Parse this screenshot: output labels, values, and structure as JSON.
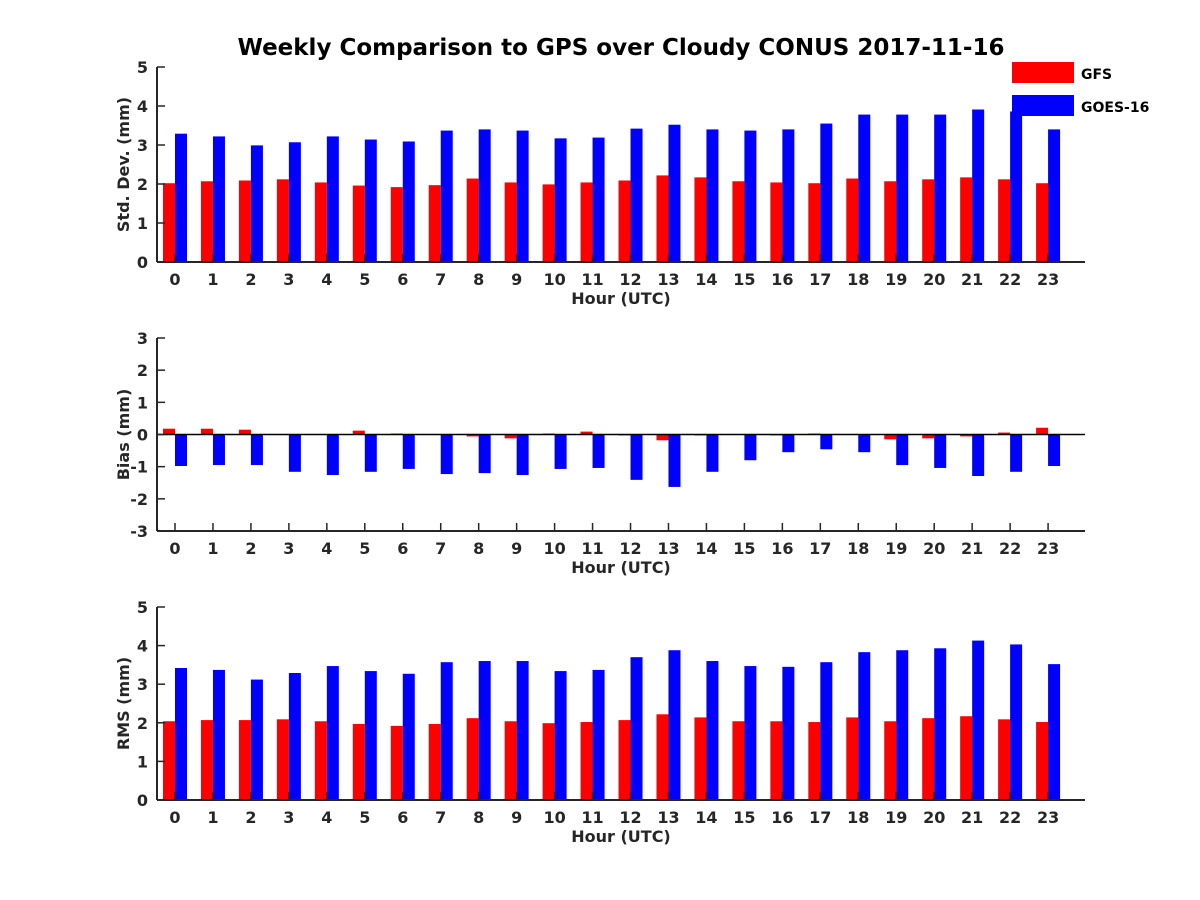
{
  "figure": {
    "title": "Weekly Comparison to GPS over Cloudy CONUS 2017-11-16"
  },
  "legend": {
    "placement": "top-right",
    "items": [
      {
        "label": "GFS",
        "color": "#ff0000"
      },
      {
        "label": "GOES-16",
        "color": "#0000ff"
      }
    ]
  },
  "chart_data": [
    {
      "type": "bar",
      "title": "Weekly Comparison to GPS over Cloudy CONUS 2017-11-16",
      "xlabel": "Hour (UTC)",
      "ylabel": "Std. Dev. (mm)",
      "ylim": [
        0,
        5
      ],
      "yticks": [
        "0",
        "1",
        "2",
        "3",
        "4",
        "5"
      ],
      "zero_line": false,
      "categories": [
        "0",
        "1",
        "2",
        "3",
        "4",
        "5",
        "6",
        "7",
        "8",
        "9",
        "10",
        "11",
        "12",
        "13",
        "14",
        "15",
        "16",
        "17",
        "18",
        "19",
        "20",
        "21",
        "22",
        "23"
      ],
      "series": [
        {
          "name": "GFS",
          "color": "#ff0000",
          "values": [
            2.02,
            2.07,
            2.09,
            2.12,
            2.04,
            1.96,
            1.92,
            1.97,
            2.14,
            2.04,
            1.99,
            2.04,
            2.09,
            2.22,
            2.17,
            2.07,
            2.04,
            2.02,
            2.14,
            2.07,
            2.12,
            2.17,
            2.12,
            2.02
          ]
        },
        {
          "name": "GOES-16",
          "color": "#0000ff",
          "values": [
            3.29,
            3.22,
            2.99,
            3.07,
            3.22,
            3.14,
            3.09,
            3.37,
            3.4,
            3.37,
            3.17,
            3.19,
            3.42,
            3.52,
            3.4,
            3.37,
            3.4,
            3.55,
            3.78,
            3.78,
            3.78,
            3.91,
            3.86,
            3.4
          ]
        }
      ]
    },
    {
      "type": "bar",
      "xlabel": "Hour (UTC)",
      "ylabel": "Bias (mm)",
      "ylim": [
        -3,
        3
      ],
      "yticks": [
        "-3",
        "-2",
        "-1",
        "0",
        "1",
        "2",
        "3"
      ],
      "zero_line": true,
      "categories": [
        "0",
        "1",
        "2",
        "3",
        "4",
        "5",
        "6",
        "7",
        "8",
        "9",
        "10",
        "11",
        "12",
        "13",
        "14",
        "15",
        "16",
        "17",
        "18",
        "19",
        "20",
        "21",
        "22",
        "23"
      ],
      "series": [
        {
          "name": "GFS",
          "color": "#ff0000",
          "values": [
            0.18,
            0.18,
            0.15,
            0.0,
            0.0,
            0.12,
            0.03,
            0.0,
            -0.06,
            -0.12,
            0.03,
            0.09,
            -0.03,
            -0.18,
            -0.03,
            0.0,
            -0.03,
            0.03,
            0.0,
            -0.15,
            -0.12,
            -0.06,
            0.06,
            0.21
          ]
        },
        {
          "name": "GOES-16",
          "color": "#0000ff",
          "values": [
            -0.98,
            -0.95,
            -0.95,
            -1.16,
            -1.26,
            -1.16,
            -1.07,
            -1.23,
            -1.2,
            -1.26,
            -1.07,
            -1.04,
            -1.41,
            -1.63,
            -1.16,
            -0.8,
            -0.55,
            -0.46,
            -0.55,
            -0.95,
            -1.04,
            -1.29,
            -1.16,
            -0.98
          ]
        }
      ]
    },
    {
      "type": "bar",
      "xlabel": "Hour (UTC)",
      "ylabel": "RMS (mm)",
      "ylim": [
        0,
        5
      ],
      "yticks": [
        "0",
        "1",
        "2",
        "3",
        "4",
        "5"
      ],
      "zero_line": false,
      "categories": [
        "0",
        "1",
        "2",
        "3",
        "4",
        "5",
        "6",
        "7",
        "8",
        "9",
        "10",
        "11",
        "12",
        "13",
        "14",
        "15",
        "16",
        "17",
        "18",
        "19",
        "20",
        "21",
        "22",
        "23"
      ],
      "series": [
        {
          "name": "GFS",
          "color": "#ff0000",
          "values": [
            2.04,
            2.07,
            2.07,
            2.09,
            2.04,
            1.97,
            1.92,
            1.97,
            2.12,
            2.04,
            1.99,
            2.02,
            2.07,
            2.22,
            2.14,
            2.04,
            2.04,
            2.02,
            2.14,
            2.04,
            2.12,
            2.17,
            2.09,
            2.02
          ]
        },
        {
          "name": "GOES-16",
          "color": "#0000ff",
          "values": [
            3.42,
            3.37,
            3.12,
            3.29,
            3.47,
            3.34,
            3.27,
            3.57,
            3.6,
            3.6,
            3.34,
            3.37,
            3.7,
            3.88,
            3.6,
            3.47,
            3.45,
            3.57,
            3.83,
            3.88,
            3.93,
            4.13,
            4.03,
            3.52
          ]
        }
      ]
    }
  ]
}
